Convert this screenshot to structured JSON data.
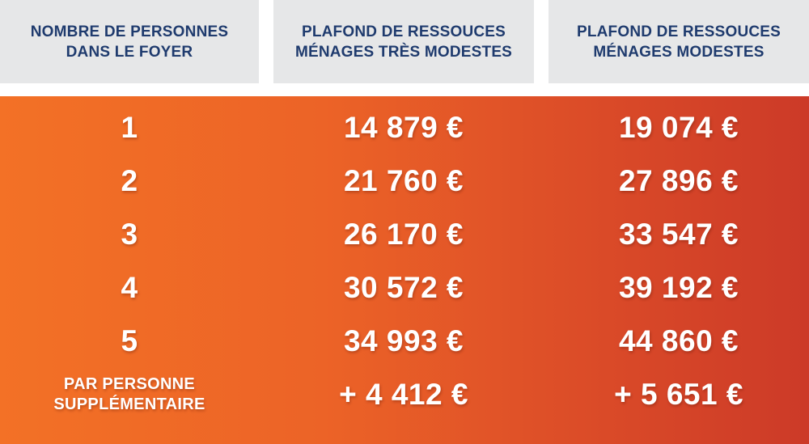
{
  "colors": {
    "header_background": "#e6e7e8",
    "header_text": "#1f3b6e",
    "body_gradient_start": "#f37126",
    "body_gradient_end": "#cc3a28",
    "body_text": "#ffffff"
  },
  "headers": [
    "NOMBRE DE PERSONNES\nDANS LE FOYER",
    "PLAFOND DE RESSOUCES\nMÉNAGES TRÈS MODESTES",
    "PLAFOND DE RESSOUCES\nMÉNAGES MODESTES"
  ],
  "rows": [
    {
      "persons": "1",
      "tres_modestes": "14 879 €",
      "modestes": "19 074 €"
    },
    {
      "persons": "2",
      "tres_modestes": "21 760 €",
      "modestes": "27 896 €"
    },
    {
      "persons": "3",
      "tres_modestes": "26 170 €",
      "modestes": "33 547 €"
    },
    {
      "persons": "4",
      "tres_modestes": "30 572 €",
      "modestes": "39 192 €"
    },
    {
      "persons": "5",
      "tres_modestes": "34 993 €",
      "modestes": "44 860 €"
    },
    {
      "persons": "PAR PERSONNE\nSUPPLÉMENTAIRE",
      "tres_modestes": "+ 4 412 €",
      "modestes": "+ 5 651 €"
    }
  ]
}
